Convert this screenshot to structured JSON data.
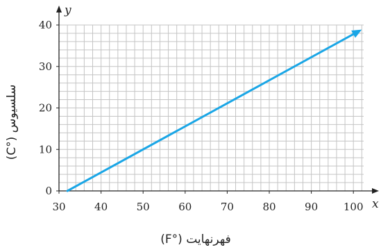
{
  "chart_data": {
    "type": "line",
    "xlabel": "فهرنهایت (°F)",
    "ylabel": "سلسیوس (°C)",
    "x_axis_letter": "x",
    "y_axis_letter": "y",
    "xlim": [
      30,
      103
    ],
    "ylim": [
      0,
      40
    ],
    "x_ticks": [
      "30",
      "40",
      "50",
      "60",
      "70",
      "80",
      "90",
      "100"
    ],
    "y_ticks": [
      "0",
      "10",
      "20",
      "30",
      "40"
    ],
    "grid": true,
    "series": [
      {
        "x": [
          32,
          102
        ],
        "y": [
          0,
          38.9
        ],
        "arrow_end": true
      }
    ],
    "colors": {
      "line": "#1aa6e6",
      "grid": "#c4c4c4",
      "axis": "#222222"
    }
  }
}
